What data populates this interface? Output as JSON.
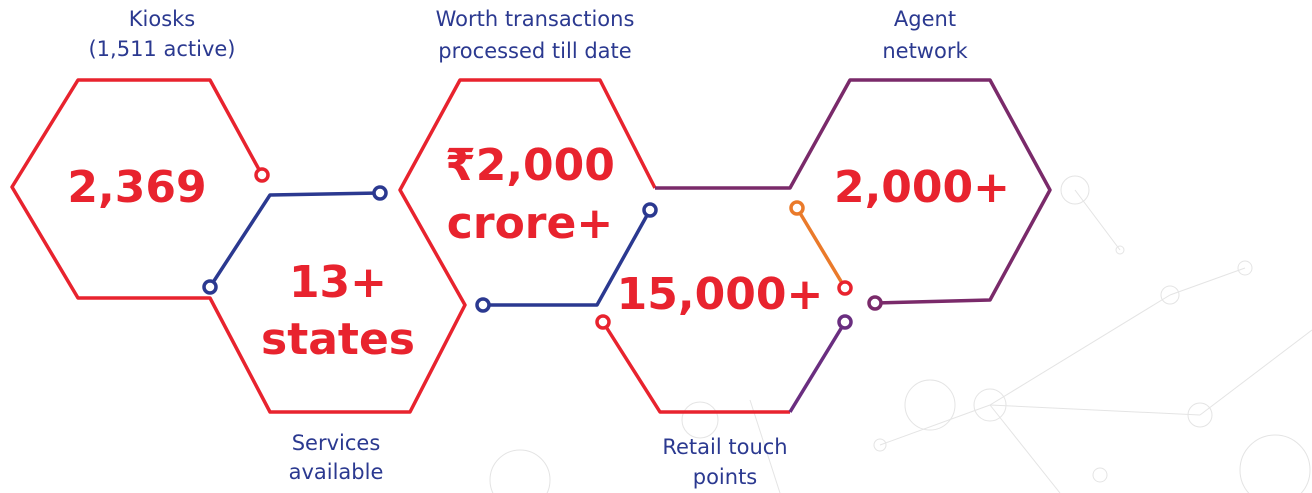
{
  "stats": [
    {
      "value": [
        "2,369"
      ],
      "label": [
        "Kiosks",
        "(1,511 active)"
      ]
    },
    {
      "value": [
        "13+",
        "states"
      ],
      "label": [
        "Services",
        "available"
      ]
    },
    {
      "value": [
        "₹2,000",
        "crore+"
      ],
      "label": [
        "Worth transactions",
        "processed till date"
      ]
    },
    {
      "value": [
        "15,000+"
      ],
      "label": [
        "Retail touch",
        "points"
      ]
    },
    {
      "value": [
        "2,000+"
      ],
      "label": [
        "Agent",
        "network"
      ]
    }
  ]
}
